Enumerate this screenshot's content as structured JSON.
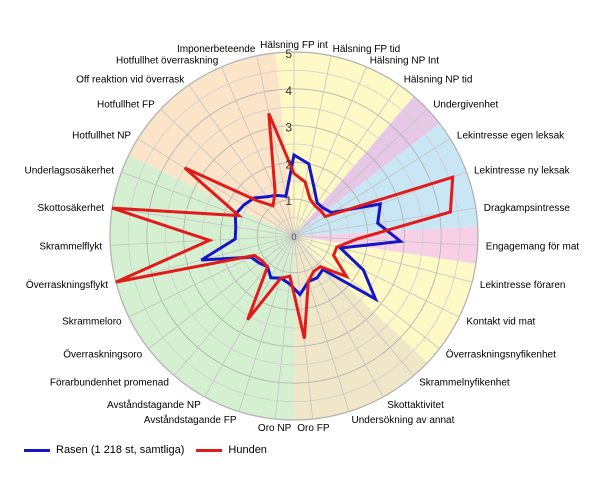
{
  "chart_data": {
    "type": "radar",
    "categories": [
      "Hälsning FP int",
      "Hälsning FP tid",
      "Hälsning NP Int",
      "Hälsning NP tid",
      "Undergivenhet",
      "Lekintresse egen leksak",
      "Lekintresse ny leksak",
      "Dragkampsintresse",
      "Engagemang för mat",
      "Lekintresse föraren",
      "Kontakt vid mat",
      "Överraskningsnyfikenhet",
      "Skrammelnyfikenhet",
      "Skottaktivitet",
      "Undersökning av annat",
      "Oro FP",
      "Oro NP",
      "Avståndstagande FP",
      "Avståndstagande NP",
      "Förarbundenhet promenad",
      "Överraskningsoro",
      "Skrammeloro",
      "Överraskningsflykt",
      "Skrammelflykt",
      "Skottosäkerhet",
      "Underlagsosäkerhet",
      "Hotfullhet NP",
      "Hotfullhet FP",
      "Off reaktion vid överrask",
      "Hotfullhet överraskning",
      "Imponerbeteende"
    ],
    "rlim": [
      0,
      5
    ],
    "r_ticks": [
      "1",
      "2",
      "3",
      "4",
      "5"
    ],
    "grid": true,
    "legend_position": "bottom-left",
    "sector_colors": [
      {
        "from": 0,
        "to": 4,
        "color": "#fff9c6"
      },
      {
        "from": 4,
        "to": 5,
        "color": "#e6c8e6"
      },
      {
        "from": 5,
        "to": 8,
        "color": "#c8e6f4"
      },
      {
        "from": 8,
        "to": 9,
        "color": "#f8d0e6"
      },
      {
        "from": 9,
        "to": 12,
        "color": "#fff9c6"
      },
      {
        "from": 12,
        "to": 16,
        "color": "#f0e6c8"
      },
      {
        "from": 16,
        "to": 26,
        "color": "#d4f0d0"
      },
      {
        "from": 26,
        "to": 31,
        "color": "#fce4c8"
      }
    ],
    "series": [
      {
        "name": "Rasen (1 218 st, samtliga)",
        "color": "#1515c8",
        "values": [
          2.2,
          2.0,
          1.4,
          1.1,
          1.1,
          1.2,
          2.5,
          2.3,
          2.9,
          1.3,
          2.1,
          2.8,
          1.2,
          1.3,
          1.3,
          1.6,
          1.3,
          1.2,
          1.3,
          1.1,
          1.2,
          1.3,
          2.6,
          1.6,
          1.6,
          1.7,
          1.6,
          1.5,
          1.3,
          1.2,
          1.1
        ]
      },
      {
        "name": "Hunden",
        "color": "#e11a1a",
        "values": [
          1.7,
          1.5,
          1.1,
          1.0,
          1.0,
          1.0,
          4.6,
          4.3,
          1.7,
          1.2,
          1.2,
          1.8,
          1.1,
          1.1,
          1.3,
          2.8,
          1.1,
          1.2,
          2.6,
          1.1,
          1.1,
          1.2,
          5.0,
          2.3,
          5.0,
          1.6,
          3.5,
          1.4,
          1.0,
          1.3,
          3.4
        ]
      }
    ]
  }
}
